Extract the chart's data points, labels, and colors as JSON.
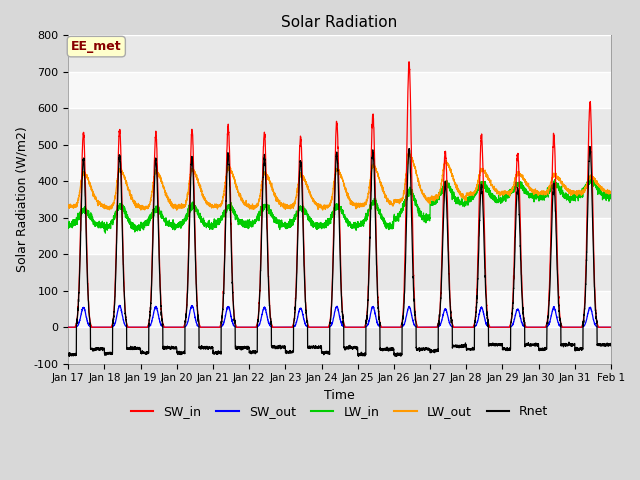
{
  "title": "Solar Radiation",
  "xlabel": "Time",
  "ylabel": "Solar Radiation (W/m2)",
  "ylim": [
    -100,
    800
  ],
  "yticks": [
    -100,
    0,
    100,
    200,
    300,
    400,
    500,
    600,
    700,
    800
  ],
  "date_labels": [
    "Jan 17",
    "Jan 18",
    "Jan 19",
    "Jan 20",
    "Jan 21",
    "Jan 22",
    "Jan 23",
    "Jan 24",
    "Jan 25",
    "Jan 26",
    "Jan 27",
    "Jan 28",
    "Jan 29",
    "Jan 30",
    "Jan 31",
    "Feb 1"
  ],
  "annotation_text": "EE_met",
  "annotation_bg": "#ffffcc",
  "annotation_border": "#aaaaaa",
  "line_colors": {
    "SW_in": "#ff0000",
    "SW_out": "#0000ff",
    "LW_in": "#00cc00",
    "LW_out": "#ff9900",
    "Rnet": "#000000"
  },
  "bg_color": "#d8d8d8",
  "plot_bg": "#ffffff",
  "band_color1": "#e8e8e8",
  "band_color2": "#f8f8f8",
  "n_days": 15,
  "SW_in_peaks": [
    530,
    540,
    530,
    540,
    550,
    530,
    520,
    560,
    580,
    720,
    480,
    520,
    480,
    520,
    615
  ],
  "SW_out_peaks": [
    60,
    65,
    62,
    65,
    63,
    60,
    58,
    63,
    62,
    62,
    55,
    60,
    55,
    60,
    60
  ],
  "LW_in_base": [
    278,
    272,
    278,
    278,
    282,
    282,
    278,
    278,
    278,
    298,
    338,
    348,
    358,
    353,
    358
  ],
  "LW_in_peak": [
    322,
    332,
    322,
    332,
    332,
    332,
    327,
    332,
    342,
    372,
    392,
    392,
    392,
    392,
    402
  ],
  "LW_out_base": [
    330,
    328,
    328,
    330,
    332,
    330,
    330,
    330,
    335,
    345,
    355,
    365,
    368,
    368,
    368
  ],
  "LW_out_peak": [
    422,
    432,
    427,
    432,
    437,
    422,
    417,
    432,
    442,
    472,
    452,
    432,
    422,
    417,
    412
  ],
  "Rnet_min": [
    -75,
    -72,
    -70,
    -70,
    -70,
    -68,
    -68,
    -70,
    -75,
    -75,
    -65,
    -60,
    -60,
    -60,
    -60
  ],
  "Rnet_peak": [
    460,
    470,
    460,
    465,
    475,
    465,
    455,
    475,
    480,
    490,
    390,
    390,
    380,
    390,
    490
  ]
}
